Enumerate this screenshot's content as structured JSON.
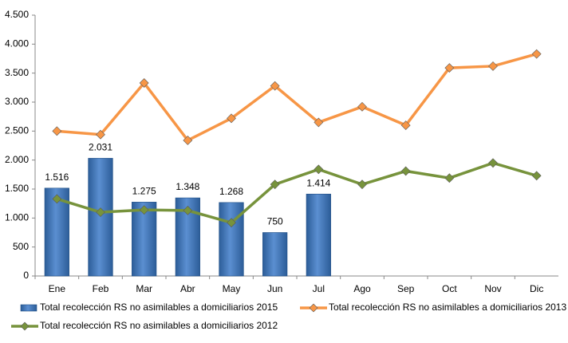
{
  "chart_data": {
    "type": "combo",
    "categories": [
      "Ene",
      "Feb",
      "Mar",
      "Abr",
      "May",
      "Jun",
      "Jul",
      "Ago",
      "Sep",
      "Oct",
      "Nov",
      "Dic"
    ],
    "ylim": [
      0,
      4500
    ],
    "yticks": [
      0,
      500,
      {
        "value": 1000,
        "label": "1.000"
      },
      {
        "value": 1500,
        "label": "1.500"
      },
      {
        "value": 2000,
        "label": "2.000"
      },
      {
        "value": 2500,
        "label": "2.500"
      },
      {
        "value": 3000,
        "label": "3.000"
      },
      {
        "value": 3500,
        "label": "3.500"
      },
      {
        "value": 4000,
        "label": "4.000"
      },
      {
        "value": 4500,
        "label": "4.500"
      }
    ],
    "grid": false,
    "legend": "bottom",
    "series": [
      {
        "name": "Total recolección RS no asimilables a domiciliarios 2015",
        "type": "bar",
        "color": "#4f81bd",
        "values": [
          1516,
          2031,
          1275,
          1348,
          1268,
          750,
          1414,
          null,
          null,
          null,
          null,
          null
        ],
        "value_labels": [
          "1.516",
          "2.031",
          "1.275",
          "1.348",
          "1.268",
          "750",
          "1.414",
          null,
          null,
          null,
          null,
          null
        ]
      },
      {
        "name": "Total recolección RS no asimilables a domiciliarios 2013",
        "type": "line",
        "color": "#f79646",
        "values": [
          2500,
          2440,
          3330,
          2340,
          2720,
          3280,
          2650,
          2920,
          2600,
          3590,
          3620,
          3830
        ]
      },
      {
        "name": "Total recolección RS no asimilables a domiciliarios 2012",
        "type": "line",
        "color": "#77933c",
        "values": [
          1330,
          1100,
          1140,
          1130,
          920,
          1580,
          1840,
          1580,
          1810,
          1690,
          1950,
          1730
        ]
      }
    ]
  }
}
